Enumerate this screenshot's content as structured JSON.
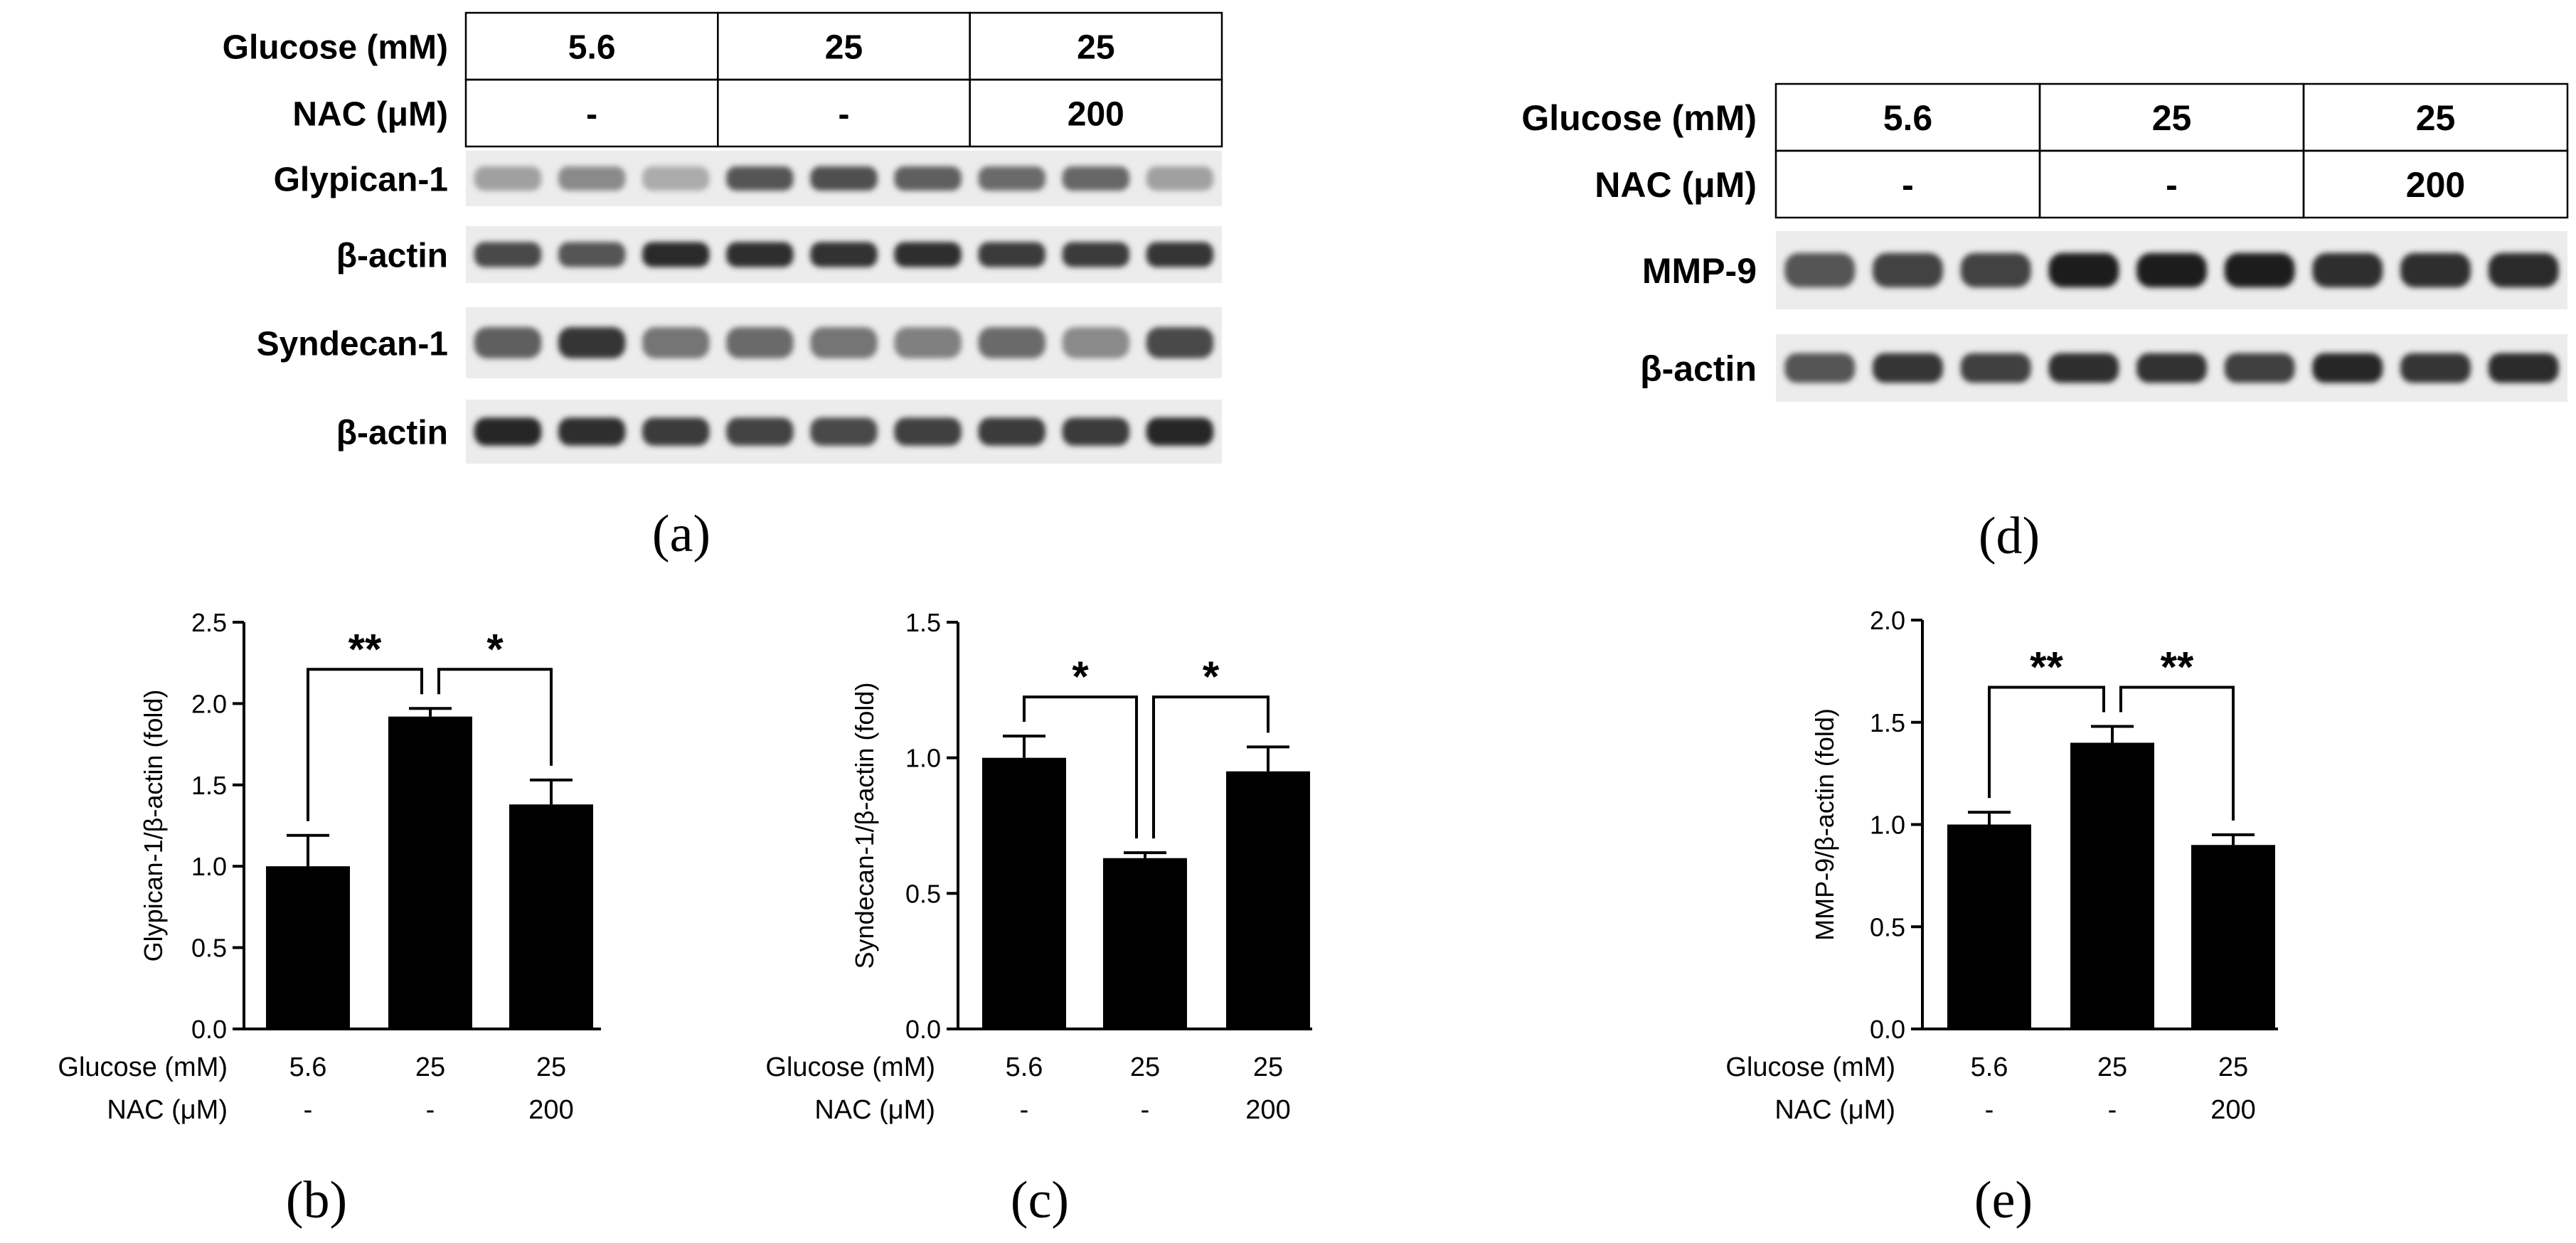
{
  "blots": {
    "a": {
      "panel_label": "(a)",
      "header": {
        "rows": [
          {
            "label": "Glucose (mM)",
            "cells": [
              "5.6",
              "25",
              "25"
            ]
          },
          {
            "label": "NAC (μM)",
            "cells": [
              "-",
              "-",
              "200"
            ]
          }
        ]
      },
      "bands": [
        {
          "label": "Glypican-1",
          "intensity": [
            0.35,
            0.45,
            0.3,
            0.7,
            0.72,
            0.65,
            0.6,
            0.62,
            0.35
          ]
        },
        {
          "label": "β-actin",
          "intensity": [
            0.75,
            0.7,
            0.9,
            0.88,
            0.86,
            0.88,
            0.82,
            0.82,
            0.84
          ]
        },
        {
          "label": "Syndecan-1",
          "intensity": [
            0.65,
            0.85,
            0.55,
            0.6,
            0.55,
            0.5,
            0.6,
            0.45,
            0.75
          ]
        },
        {
          "label": "β-actin",
          "intensity": [
            0.92,
            0.88,
            0.82,
            0.78,
            0.76,
            0.8,
            0.82,
            0.82,
            0.92
          ]
        }
      ]
    },
    "d": {
      "panel_label": "(d)",
      "header": {
        "rows": [
          {
            "label": "Glucose (mM)",
            "cells": [
              "5.6",
              "25",
              "25"
            ]
          },
          {
            "label": "NAC (μM)",
            "cells": [
              "-",
              "-",
              "200"
            ]
          }
        ]
      },
      "bands": [
        {
          "label": "MMP-9",
          "intensity": [
            0.7,
            0.78,
            0.78,
            0.97,
            0.97,
            0.95,
            0.88,
            0.88,
            0.9
          ]
        },
        {
          "label": "β-actin",
          "intensity": [
            0.7,
            0.85,
            0.8,
            0.88,
            0.86,
            0.8,
            0.92,
            0.85,
            0.9
          ]
        }
      ]
    }
  },
  "chart_data": [
    {
      "id": "b",
      "type": "bar",
      "panel_label": "(b)",
      "ylabel": "Glypican-1/β-actin (fold)",
      "ylim": [
        0,
        2.5
      ],
      "yticks": [
        "0.0",
        "0.5",
        "1.0",
        "1.5",
        "2.0",
        "2.5"
      ],
      "categories": [
        "5.6",
        "25",
        "25"
      ],
      "condition_rows": [
        {
          "label": "Glucose (mM)",
          "values": [
            "5.6",
            "25",
            "25"
          ]
        },
        {
          "label": "NAC (μM)",
          "values": [
            "-",
            "-",
            "200"
          ]
        }
      ],
      "values": [
        1.0,
        1.92,
        1.38
      ],
      "errors": [
        0.19,
        0.05,
        0.15
      ],
      "significance": [
        {
          "from": 0,
          "to": 1,
          "label": "**"
        },
        {
          "from": 1,
          "to": 2,
          "label": "*"
        }
      ],
      "bar_color": "#000000"
    },
    {
      "id": "c",
      "type": "bar",
      "panel_label": "(c)",
      "ylabel": "Syndecan-1/β-actin (fold)",
      "ylim": [
        0,
        1.5
      ],
      "yticks": [
        "0.0",
        "0.5",
        "1.0",
        "1.5"
      ],
      "categories": [
        "5.6",
        "25",
        "25"
      ],
      "condition_rows": [
        {
          "label": "Glucose (mM)",
          "values": [
            "5.6",
            "25",
            "25"
          ]
        },
        {
          "label": "NAC (μM)",
          "values": [
            "-",
            "-",
            "200"
          ]
        }
      ],
      "values": [
        1.0,
        0.63,
        0.95
      ],
      "errors": [
        0.08,
        0.02,
        0.09
      ],
      "significance": [
        {
          "from": 0,
          "to": 1,
          "label": "*"
        },
        {
          "from": 1,
          "to": 2,
          "label": "*"
        }
      ],
      "bar_color": "#000000"
    },
    {
      "id": "e",
      "type": "bar",
      "panel_label": "(e)",
      "ylabel": "MMP-9/β-actin (fold)",
      "ylim": [
        0,
        2.0
      ],
      "yticks": [
        "0.0",
        "0.5",
        "1.0",
        "1.5",
        "2.0"
      ],
      "categories": [
        "5.6",
        "25",
        "25"
      ],
      "condition_rows": [
        {
          "label": "Glucose (mM)",
          "values": [
            "5.6",
            "25",
            "25"
          ]
        },
        {
          "label": "NAC (μM)",
          "values": [
            "-",
            "-",
            "200"
          ]
        }
      ],
      "values": [
        1.0,
        1.4,
        0.9
      ],
      "errors": [
        0.06,
        0.08,
        0.05
      ],
      "significance": [
        {
          "from": 0,
          "to": 1,
          "label": "**"
        },
        {
          "from": 1,
          "to": 2,
          "label": "**"
        }
      ],
      "bar_color": "#000000"
    }
  ]
}
